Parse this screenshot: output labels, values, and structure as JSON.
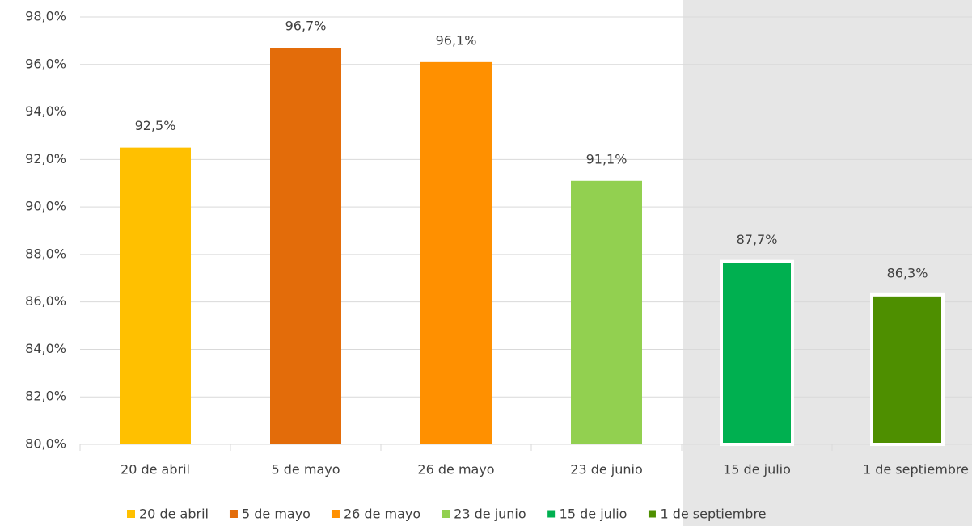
{
  "chart_data": {
    "type": "bar",
    "categories": [
      "20 de abril",
      "5 de mayo",
      "26 de mayo",
      "23 de junio",
      "15 de julio",
      "1 de septiembre"
    ],
    "values": [
      92.5,
      96.7,
      96.1,
      91.1,
      87.7,
      86.3
    ],
    "value_labels": [
      "92,5%",
      "96,7%",
      "96,1%",
      "91,1%",
      "87,7%",
      "86,3%"
    ],
    "colors": [
      "#ffc000",
      "#e36c0a",
      "#ff9000",
      "#92d050",
      "#00b050",
      "#4e8f00"
    ],
    "ylim": [
      80,
      98
    ],
    "yticks": [
      {
        "value": 80,
        "label": "80,0%"
      },
      {
        "value": 82,
        "label": "82,0%"
      },
      {
        "value": 84,
        "label": "84,0%"
      },
      {
        "value": 86,
        "label": "86,0%"
      },
      {
        "value": 88,
        "label": "88,0%"
      },
      {
        "value": 90,
        "label": "90,0%"
      },
      {
        "value": 92,
        "label": "92,0%"
      },
      {
        "value": 94,
        "label": "94,0%"
      },
      {
        "value": 96,
        "label": "96,0%"
      },
      {
        "value": 98,
        "label": "98,0%"
      }
    ],
    "grid": true,
    "legend": "bottom"
  }
}
